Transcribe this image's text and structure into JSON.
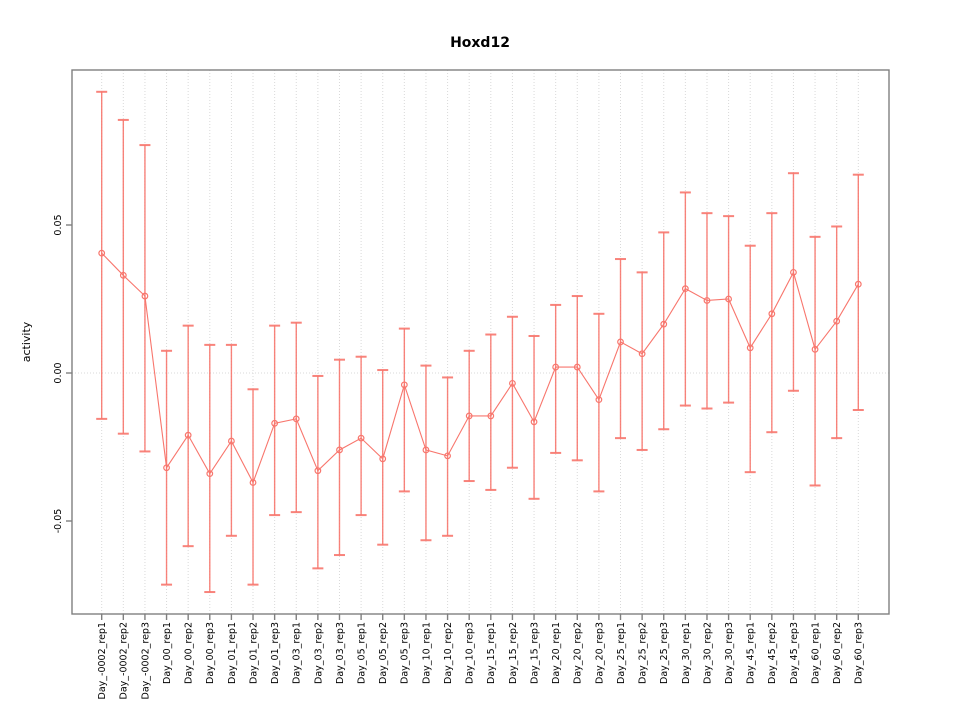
{
  "window": {
    "title": "Hoxd12 activity plot"
  },
  "chart_data": {
    "type": "scatter",
    "title": "Hoxd12",
    "xlabel": "",
    "ylabel": "activity",
    "grid": "vertical-dotted-per-category-plus-zero-line",
    "legend": "none",
    "marker": "open-circle",
    "error_bars": true,
    "ylim": [
      -0.081,
      0.102
    ],
    "yticks": {
      "values": [
        0.05,
        0.0,
        -0.05
      ],
      "labels": [
        "0.05",
        "0.00",
        "-0.05"
      ]
    },
    "colors": {
      "series": "#f8766d",
      "grid": "#d9d9d9",
      "frame": "#7f7f7f",
      "text": "#000000",
      "background": "#ffffff"
    },
    "categories": [
      "Day_-0002_rep1",
      "Day_-0002_rep2",
      "Day_-0002_rep3",
      "Day_00_rep1",
      "Day_00_rep2",
      "Day_00_rep3",
      "Day_01_rep1",
      "Day_01_rep2",
      "Day_01_rep3",
      "Day_03_rep1",
      "Day_03_rep2",
      "Day_03_rep3",
      "Day_05_rep1",
      "Day_05_rep2",
      "Day_05_rep3",
      "Day_10_rep1",
      "Day_10_rep2",
      "Day_10_rep3",
      "Day_15_rep1",
      "Day_15_rep2",
      "Day_15_rep3",
      "Day_20_rep1",
      "Day_20_rep2",
      "Day_20_rep3",
      "Day_25_rep1",
      "Day_25_rep2",
      "Day_25_rep3",
      "Day_30_rep1",
      "Day_30_rep2",
      "Day_30_rep3",
      "Day_45_rep1",
      "Day_45_rep2",
      "Day_45_rep3",
      "Day_60_rep1",
      "Day_60_rep2",
      "Day_60_rep3"
    ],
    "series": [
      {
        "name": "activity",
        "values": [
          0.0405,
          0.033,
          0.026,
          -0.032,
          -0.021,
          -0.034,
          -0.023,
          -0.037,
          -0.017,
          -0.0155,
          -0.033,
          -0.026,
          -0.022,
          -0.029,
          -0.004,
          -0.026,
          -0.028,
          -0.0145,
          -0.0145,
          -0.0035,
          -0.0165,
          0.002,
          0.002,
          -0.009,
          0.0105,
          0.0065,
          0.0165,
          0.0285,
          0.0245,
          0.025,
          0.0085,
          0.02,
          0.034,
          0.008,
          0.0175,
          0.03
        ],
        "upper": [
          0.095,
          0.0855,
          0.077,
          0.0075,
          0.016,
          0.0095,
          0.0095,
          -0.0055,
          0.016,
          0.017,
          -0.001,
          0.0045,
          0.0055,
          0.001,
          0.015,
          0.0025,
          -0.0015,
          0.0075,
          0.013,
          0.019,
          0.0125,
          0.023,
          0.026,
          0.02,
          0.0385,
          0.034,
          0.0475,
          0.061,
          0.054,
          0.053,
          0.043,
          0.054,
          0.0675,
          0.046,
          0.0495,
          0.067
        ],
        "lower": [
          -0.0155,
          -0.0205,
          -0.0265,
          -0.0715,
          -0.0585,
          -0.074,
          -0.055,
          -0.0715,
          -0.048,
          -0.047,
          -0.066,
          -0.0615,
          -0.048,
          -0.058,
          -0.04,
          -0.0565,
          -0.055,
          -0.0365,
          -0.0395,
          -0.032,
          -0.0425,
          -0.027,
          -0.0295,
          -0.04,
          -0.022,
          -0.026,
          -0.019,
          -0.011,
          -0.012,
          -0.01,
          -0.0335,
          -0.02,
          -0.006,
          -0.038,
          -0.022,
          -0.0125
        ]
      }
    ]
  }
}
